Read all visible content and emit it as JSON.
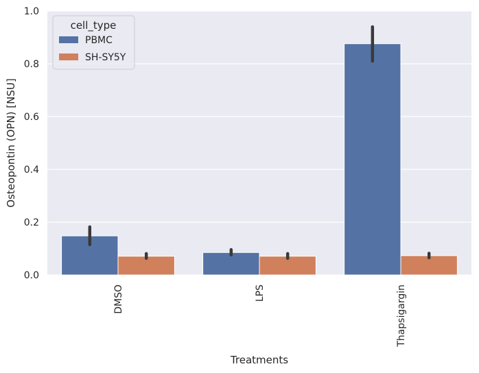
{
  "chart_data": {
    "type": "bar",
    "categories": [
      "DMSO",
      "LPS",
      "Thapsigargin"
    ],
    "series": [
      {
        "name": "PBMC",
        "values": [
          0.148,
          0.085,
          0.876
        ],
        "ci_low": [
          0.115,
          0.076,
          0.81
        ],
        "ci_high": [
          0.182,
          0.096,
          0.94
        ],
        "color": "#5572a5"
      },
      {
        "name": "SH-SY5Y",
        "values": [
          0.071,
          0.071,
          0.073
        ],
        "ci_low": [
          0.063,
          0.063,
          0.065
        ],
        "ci_high": [
          0.081,
          0.081,
          0.082
        ],
        "color": "#d0815c"
      }
    ],
    "xlabel": "Treatments",
    "ylabel": "Osteopontin (OPN) [NSU]",
    "ylim": [
      0,
      1.0
    ],
    "yticks": [
      "0.0",
      "0.2",
      "0.4",
      "0.6",
      "0.8",
      "1.0"
    ],
    "ytick_values": [
      0,
      0.2,
      0.4,
      0.6,
      0.8,
      1.0
    ],
    "legend_title": "cell_type",
    "legend_position": "top-left",
    "grid": true
  },
  "colors": {
    "plot_bg": "#eaeaf2",
    "grid": "#ffffff",
    "errorbar": "#3a3a3a"
  }
}
